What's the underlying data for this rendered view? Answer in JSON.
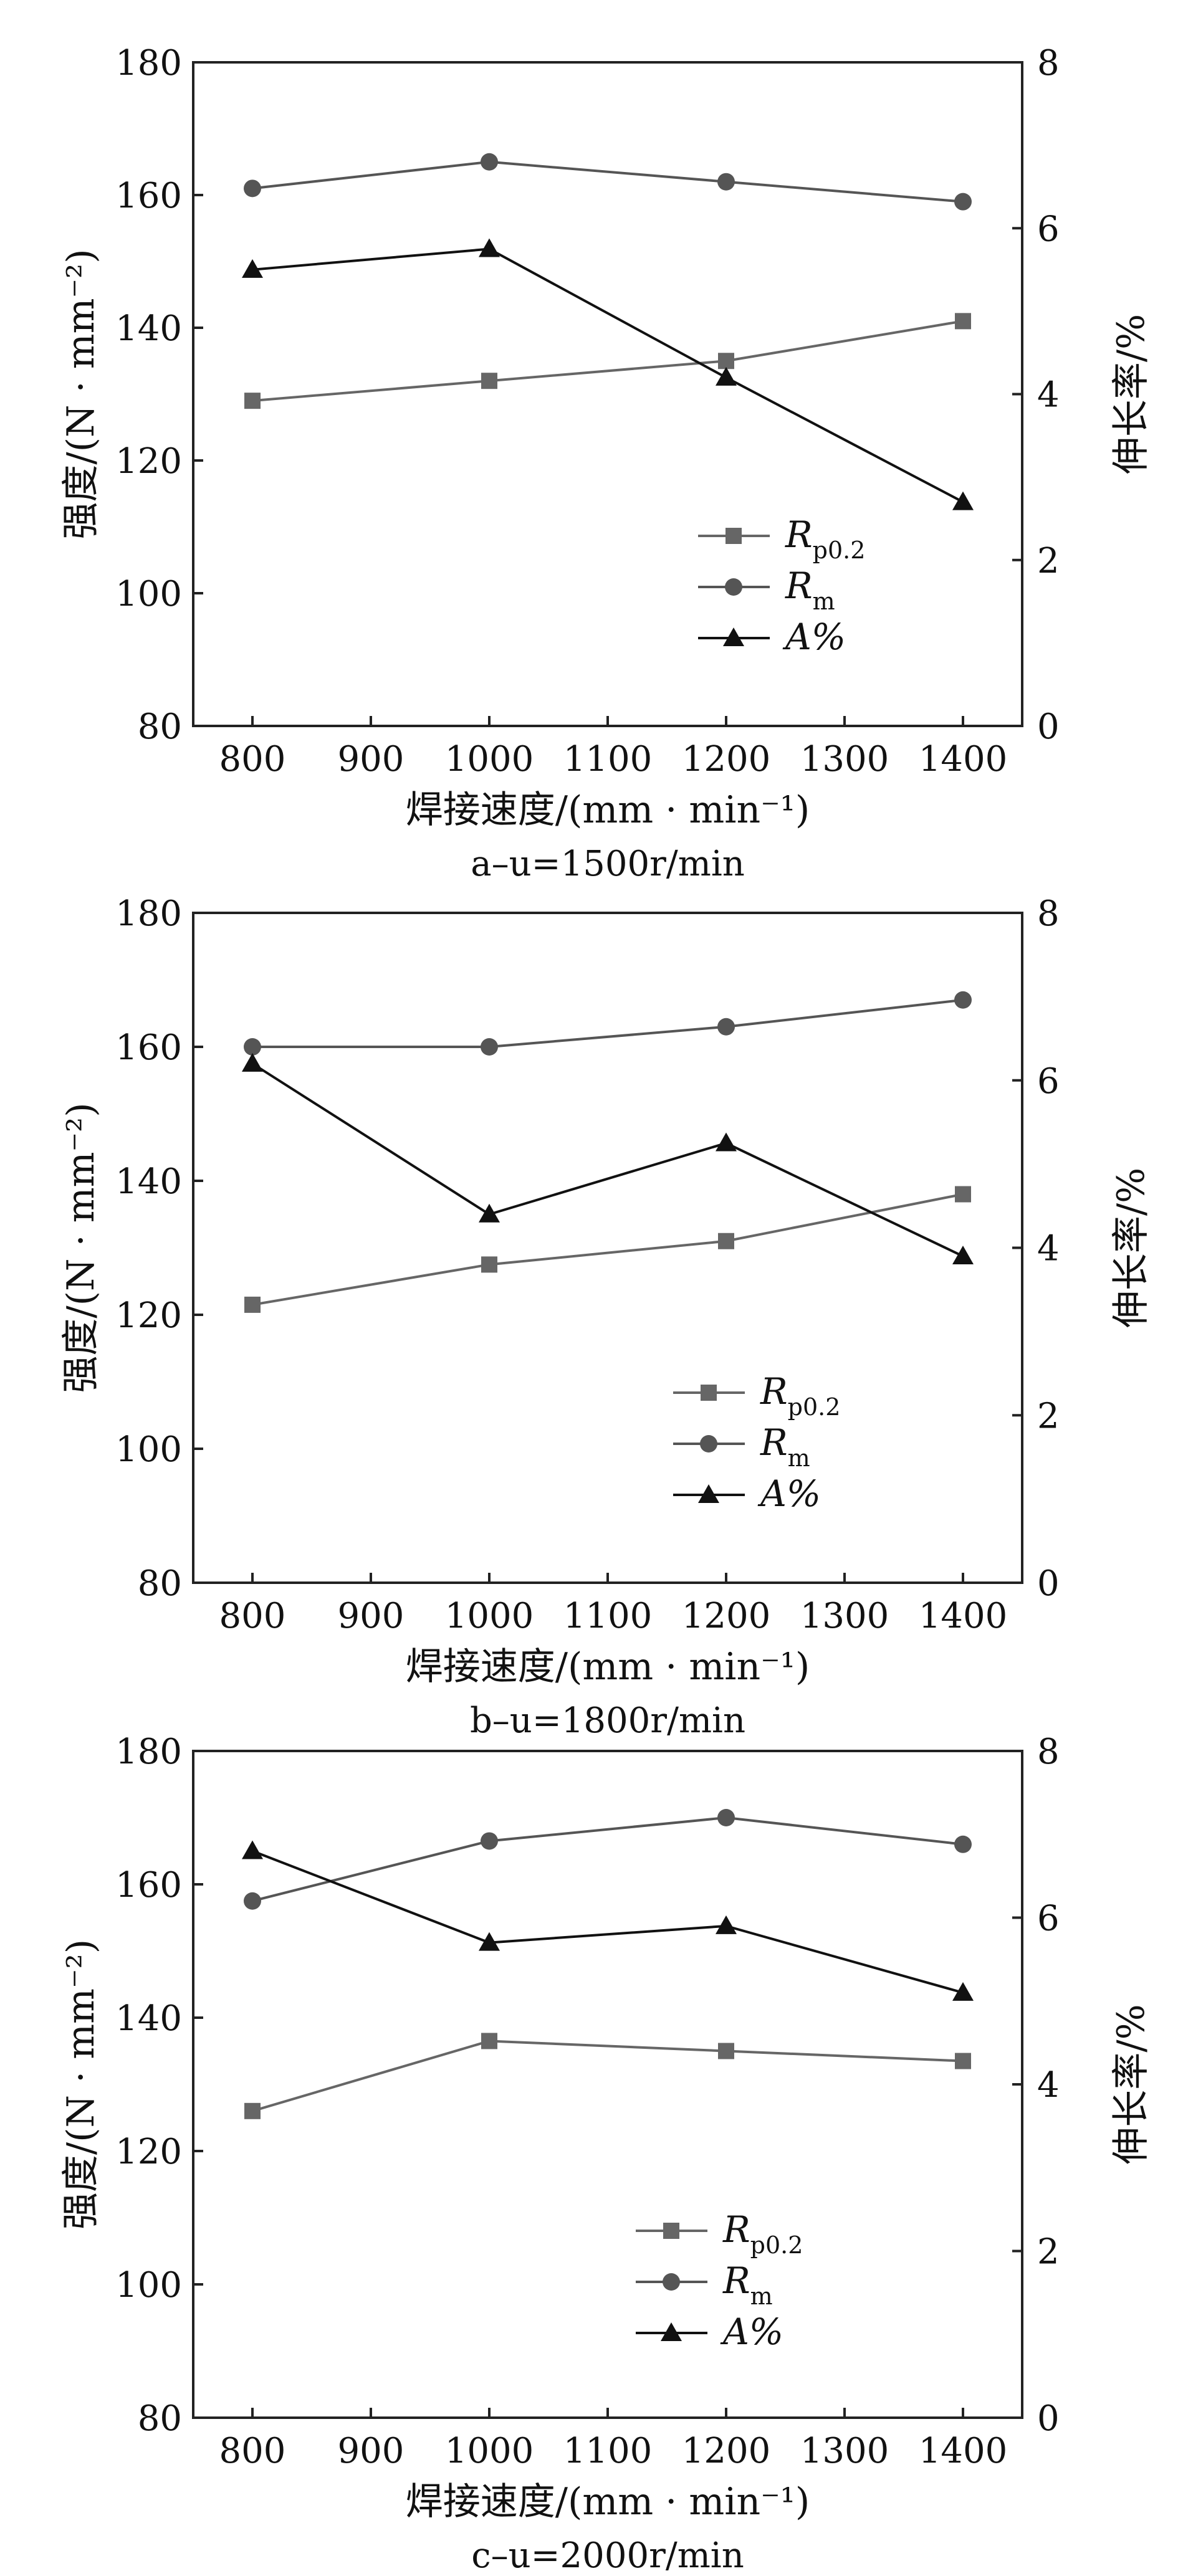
{
  "colors": {
    "series_rp": "#666666",
    "series_rm": "#555555",
    "series_a": "#111111",
    "axis": "#222222"
  },
  "legend_labels": {
    "rp_main": "R",
    "rp_sub": "p0.2",
    "rm_main": "R",
    "rm_sub": "m",
    "a": "A%"
  },
  "chart_data": [
    {
      "type": "line",
      "caption": "a–u=1500r/min",
      "xlabel": "焊接速度/(mm · min⁻¹)",
      "ylabel": "强度/(N · mm⁻²)",
      "y2label": "伸长率/%",
      "xlim": [
        750,
        1450
      ],
      "ylim": [
        80,
        180
      ],
      "y2lim": [
        0,
        8
      ],
      "xticks": [
        800,
        900,
        1000,
        1100,
        1200,
        1300,
        1400
      ],
      "yticks": [
        80,
        100,
        120,
        140,
        160,
        180
      ],
      "y2ticks": [
        0,
        2,
        4,
        6,
        8
      ],
      "legend_position": "center-right",
      "x": [
        800,
        1000,
        1200,
        1400
      ],
      "series": [
        {
          "name": "Rp0.2",
          "axis": "left",
          "marker": "square",
          "values": [
            129,
            132,
            135,
            141
          ]
        },
        {
          "name": "Rm",
          "axis": "left",
          "marker": "circle",
          "values": [
            161,
            165,
            162,
            159
          ]
        },
        {
          "name": "A%",
          "axis": "right",
          "marker": "triangle",
          "values": [
            5.5,
            5.75,
            4.2,
            2.7
          ]
        }
      ]
    },
    {
      "type": "line",
      "caption": "b–u=1800r/min",
      "xlabel": "焊接速度/(mm · min⁻¹)",
      "ylabel": "强度/(N · mm⁻²)",
      "y2label": "伸长率/%",
      "xlim": [
        750,
        1450
      ],
      "ylim": [
        80,
        180
      ],
      "y2lim": [
        0,
        8
      ],
      "xticks": [
        800,
        900,
        1000,
        1100,
        1200,
        1300,
        1400
      ],
      "yticks": [
        80,
        100,
        120,
        140,
        160,
        180
      ],
      "y2ticks": [
        0,
        2,
        4,
        6,
        8
      ],
      "legend_position": "center-right",
      "x": [
        800,
        1000,
        1200,
        1400
      ],
      "series": [
        {
          "name": "Rp0.2",
          "axis": "left",
          "marker": "square",
          "values": [
            121.5,
            127.5,
            131,
            138
          ]
        },
        {
          "name": "Rm",
          "axis": "left",
          "marker": "circle",
          "values": [
            160,
            160,
            163,
            167
          ]
        },
        {
          "name": "A%",
          "axis": "right",
          "marker": "triangle",
          "values": [
            6.2,
            4.4,
            5.25,
            3.9
          ]
        }
      ]
    },
    {
      "type": "line",
      "caption": "c–u=2000r/min",
      "xlabel": "焊接速度/(mm · min⁻¹)",
      "ylabel": "强度/(N · mm⁻²)",
      "y2label": "伸长率/%",
      "xlim": [
        750,
        1450
      ],
      "ylim": [
        80,
        180
      ],
      "y2lim": [
        0,
        8
      ],
      "xticks": [
        800,
        900,
        1000,
        1100,
        1200,
        1300,
        1400
      ],
      "yticks": [
        80,
        100,
        120,
        140,
        160,
        180
      ],
      "y2ticks": [
        0,
        2,
        4,
        6,
        8
      ],
      "legend_position": "center-right",
      "x": [
        800,
        1000,
        1200,
        1400
      ],
      "series": [
        {
          "name": "Rp0.2",
          "axis": "left",
          "marker": "square",
          "values": [
            126,
            136.5,
            135,
            133.5
          ]
        },
        {
          "name": "Rm",
          "axis": "left",
          "marker": "circle",
          "values": [
            157.5,
            166.5,
            170,
            166
          ]
        },
        {
          "name": "A%",
          "axis": "right",
          "marker": "triangle",
          "values": [
            6.8,
            5.7,
            5.9,
            5.1
          ]
        }
      ]
    }
  ]
}
